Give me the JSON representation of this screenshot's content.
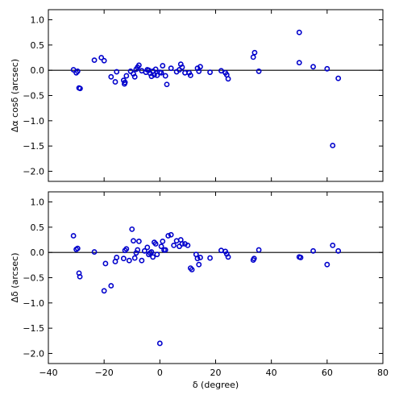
{
  "chart_data": [
    {
      "type": "scatter",
      "title": "",
      "xlabel": "",
      "ylabel": "Δα cosδ (arcsec)",
      "xlim": [
        -40,
        80
      ],
      "ylim": [
        -2.2,
        1.2
      ],
      "yticks": [
        1.0,
        0.5,
        0.0,
        -0.5,
        -1.0,
        -1.5,
        -2.0
      ],
      "ytick_labels": [
        "1.0",
        "0.5",
        "0.0",
        "−0.5",
        "−1.0",
        "−1.5",
        "−2.0"
      ],
      "show_xtick_labels": false,
      "reference_line_y": 0,
      "marker_color": "#0000cc",
      "points": [
        [
          -31,
          0.01
        ],
        [
          -30,
          -0.05
        ],
        [
          -29.5,
          -0.02
        ],
        [
          -29,
          -0.35
        ],
        [
          -28.6,
          -0.36
        ],
        [
          -23.5,
          0.2
        ],
        [
          -21,
          0.25
        ],
        [
          -20,
          0.19
        ],
        [
          -17.5,
          -0.13
        ],
        [
          -16,
          -0.23
        ],
        [
          -15.5,
          -0.03
        ],
        [
          -13,
          -0.2
        ],
        [
          -12.7,
          -0.27
        ],
        [
          -12.5,
          -0.24
        ],
        [
          -12,
          -0.11
        ],
        [
          -10.5,
          -0.02
        ],
        [
          -9.5,
          -0.07
        ],
        [
          -9,
          -0.13
        ],
        [
          -8.5,
          0.02
        ],
        [
          -8,
          0.06
        ],
        [
          -7.5,
          0.1
        ],
        [
          -6.5,
          -0.01
        ],
        [
          -5,
          -0.04
        ],
        [
          -4.5,
          0.01
        ],
        [
          -4,
          0.0
        ],
        [
          -3.5,
          -0.06
        ],
        [
          -3,
          -0.12
        ],
        [
          -2.5,
          -0.02
        ],
        [
          -2,
          -0.09
        ],
        [
          -1.5,
          0.02
        ],
        [
          -1,
          -0.1
        ],
        [
          0,
          -0.04
        ],
        [
          0.5,
          -0.05
        ],
        [
          1,
          0.09
        ],
        [
          2,
          -0.11
        ],
        [
          2.5,
          -0.28
        ],
        [
          4,
          0.04
        ],
        [
          6,
          -0.03
        ],
        [
          7,
          0.01
        ],
        [
          7.5,
          0.12
        ],
        [
          8,
          0.06
        ],
        [
          9,
          -0.05
        ],
        [
          10.5,
          -0.05
        ],
        [
          11,
          -0.1
        ],
        [
          13.5,
          0.04
        ],
        [
          14,
          -0.02
        ],
        [
          14.5,
          0.07
        ],
        [
          18,
          -0.04
        ],
        [
          22,
          -0.01
        ],
        [
          23.5,
          -0.05
        ],
        [
          24,
          -0.09
        ],
        [
          24.5,
          -0.17
        ],
        [
          33.5,
          0.26
        ],
        [
          34,
          0.35
        ],
        [
          35.5,
          -0.02
        ],
        [
          50,
          0.75
        ],
        [
          50,
          0.15
        ],
        [
          55,
          0.07
        ],
        [
          60,
          0.03
        ],
        [
          62,
          -1.49
        ],
        [
          64,
          -0.16
        ]
      ]
    },
    {
      "type": "scatter",
      "title": "",
      "xlabel": "δ (degree)",
      "ylabel": "Δδ (arcsec)",
      "xlim": [
        -40,
        80
      ],
      "ylim": [
        -2.2,
        1.2
      ],
      "xticks": [
        -40,
        -20,
        0,
        20,
        40,
        60,
        80
      ],
      "xtick_labels": [
        "−40",
        "−20",
        "0",
        "20",
        "40",
        "60",
        "80"
      ],
      "yticks": [
        1.0,
        0.5,
        0.0,
        -0.5,
        -1.0,
        -1.5,
        -2.0
      ],
      "ytick_labels": [
        "1.0",
        "0.5",
        "0.0",
        "−0.5",
        "−1.0",
        "−1.5",
        "−2.0"
      ],
      "reference_line_y": 0,
      "marker_color": "#0000cc",
      "points": [
        [
          -31,
          0.33
        ],
        [
          -30,
          0.06
        ],
        [
          -29.5,
          0.08
        ],
        [
          -29,
          -0.41
        ],
        [
          -28.7,
          -0.48
        ],
        [
          -23.5,
          0.01
        ],
        [
          -20,
          -0.76
        ],
        [
          -19.5,
          -0.22
        ],
        [
          -17.5,
          -0.66
        ],
        [
          -16,
          -0.18
        ],
        [
          -15.5,
          -0.1
        ],
        [
          -13,
          -0.12
        ],
        [
          -12.5,
          0.04
        ],
        [
          -12,
          0.07
        ],
        [
          -11,
          -0.16
        ],
        [
          -10,
          0.46
        ],
        [
          -9.5,
          0.23
        ],
        [
          -9,
          -0.11
        ],
        [
          -8.5,
          -0.01
        ],
        [
          -8,
          0.05
        ],
        [
          -7.5,
          0.22
        ],
        [
          -6.5,
          -0.16
        ],
        [
          -5.5,
          0.03
        ],
        [
          -4.5,
          0.1
        ],
        [
          -4,
          -0.04
        ],
        [
          -3.5,
          -0.01
        ],
        [
          -3,
          0.01
        ],
        [
          -2.5,
          -0.09
        ],
        [
          -2,
          0.2
        ],
        [
          -1.5,
          0.17
        ],
        [
          -1,
          -0.04
        ],
        [
          0,
          -1.8
        ],
        [
          0.5,
          0.12
        ],
        [
          1,
          0.22
        ],
        [
          1.5,
          0.05
        ],
        [
          2,
          0.05
        ],
        [
          3,
          0.33
        ],
        [
          4,
          0.35
        ],
        [
          5,
          0.14
        ],
        [
          6,
          0.23
        ],
        [
          7,
          0.12
        ],
        [
          7.5,
          0.25
        ],
        [
          8,
          0.17
        ],
        [
          9,
          0.17
        ],
        [
          10,
          0.14
        ],
        [
          11,
          -0.31
        ],
        [
          11.5,
          -0.34
        ],
        [
          13,
          -0.04
        ],
        [
          13.5,
          -0.12
        ],
        [
          14,
          -0.24
        ],
        [
          14.5,
          -0.1
        ],
        [
          18,
          -0.11
        ],
        [
          22,
          0.04
        ],
        [
          23.5,
          0.02
        ],
        [
          24,
          -0.03
        ],
        [
          24.5,
          -0.09
        ],
        [
          33.5,
          -0.15
        ],
        [
          33.8,
          -0.12
        ],
        [
          35.5,
          0.05
        ],
        [
          50,
          -0.09
        ],
        [
          50.5,
          -0.1
        ],
        [
          55,
          0.03
        ],
        [
          60,
          -0.24
        ],
        [
          62,
          0.14
        ],
        [
          64,
          0.03
        ]
      ]
    }
  ]
}
